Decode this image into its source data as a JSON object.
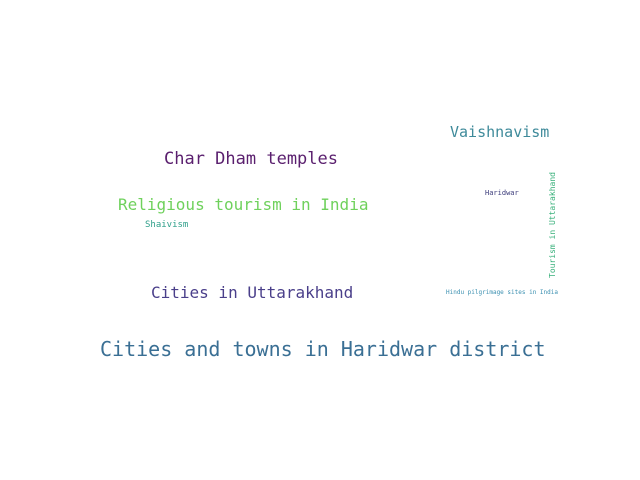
{
  "words": [
    {
      "id": "cities-and-towns-in-haridwar-district",
      "text": "Cities and towns in Haridwar district",
      "color": "#3a6f94"
    },
    {
      "id": "char-dham-temples",
      "text": "Char Dham temples",
      "color": "#5a1f6e"
    },
    {
      "id": "religious-tourism-in-india",
      "text": "Religious tourism in India",
      "color": "#6fd15c"
    },
    {
      "id": "cities-in-uttarakhand",
      "text": "Cities in Uttarakhand",
      "color": "#4a3f8a"
    },
    {
      "id": "vaishnavism",
      "text": "Vaishnavism",
      "color": "#3e8a9a"
    },
    {
      "id": "shaivism",
      "text": "Shaivism",
      "color": "#2f9f8a"
    },
    {
      "id": "haridwar",
      "text": "Haridwar",
      "color": "#3b3b7a"
    },
    {
      "id": "tourism-in-uttarakhand",
      "text": "Tourism in Uttarakhand",
      "color": "#38b07a"
    },
    {
      "id": "hindu-pilgrimage-sites-in-india",
      "text": "Hindu pilgrimage sites in India",
      "color": "#3a8fb0"
    }
  ]
}
